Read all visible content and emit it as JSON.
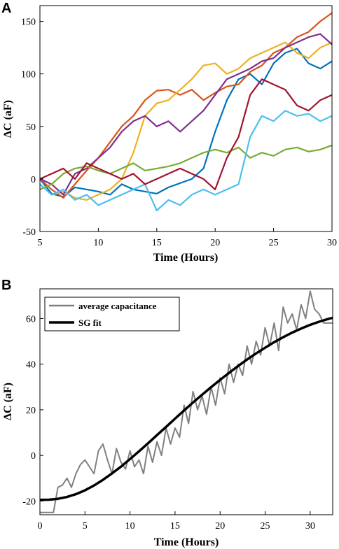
{
  "chart_data": [
    {
      "type": "line",
      "panel_label": "A",
      "xlabel": "Time (Hours)",
      "ylabel": "ΔC (aF)",
      "xlim": [
        5,
        30
      ],
      "ylim": [
        -50,
        165
      ],
      "xticks": [
        5,
        10,
        15,
        20,
        25,
        30
      ],
      "yticks": [
        -50,
        0,
        50,
        100,
        150
      ],
      "grid": false,
      "legend": "none",
      "series": [
        {
          "color": "#0072bd",
          "x": [
            5,
            6,
            7,
            8,
            9,
            10,
            11,
            12,
            13,
            14,
            15,
            16,
            17,
            18,
            19,
            20,
            21,
            22,
            23,
            24,
            25,
            26,
            27,
            28,
            29,
            30
          ],
          "values": [
            0,
            -14,
            -17,
            -8,
            -10,
            -12,
            -15,
            -5,
            -10,
            -12,
            -14,
            -8,
            -4,
            0,
            10,
            45,
            75,
            95,
            100,
            90,
            110,
            120,
            124,
            110,
            105,
            112
          ]
        },
        {
          "color": "#d95319",
          "x": [
            5,
            6,
            7,
            8,
            9,
            10,
            11,
            12,
            13,
            14,
            15,
            16,
            17,
            18,
            19,
            20,
            21,
            22,
            23,
            24,
            25,
            26,
            27,
            28,
            29,
            30
          ],
          "values": [
            0,
            -10,
            -18,
            -5,
            8,
            20,
            35,
            50,
            60,
            75,
            84,
            85,
            80,
            85,
            75,
            82,
            88,
            90,
            102,
            108,
            120,
            125,
            135,
            140,
            150,
            158
          ]
        },
        {
          "color": "#edb120",
          "x": [
            5,
            6,
            7,
            8,
            9,
            10,
            11,
            12,
            13,
            14,
            15,
            16,
            17,
            18,
            19,
            20,
            21,
            22,
            23,
            24,
            25,
            26,
            27,
            28,
            29,
            30
          ],
          "values": [
            -5,
            -15,
            -12,
            -18,
            -20,
            -15,
            -10,
            0,
            25,
            60,
            72,
            75,
            85,
            95,
            108,
            110,
            100,
            105,
            115,
            120,
            125,
            130,
            120,
            115,
            125,
            130
          ]
        },
        {
          "color": "#7e2f8e",
          "x": [
            5,
            6,
            7,
            8,
            9,
            10,
            11,
            12,
            13,
            14,
            15,
            16,
            17,
            18,
            19,
            20,
            21,
            22,
            23,
            24,
            25,
            26,
            27,
            28,
            29,
            30
          ],
          "values": [
            0,
            -5,
            -15,
            5,
            10,
            20,
            30,
            45,
            55,
            60,
            50,
            55,
            45,
            55,
            65,
            80,
            95,
            100,
            105,
            112,
            115,
            125,
            130,
            135,
            138,
            128
          ]
        },
        {
          "color": "#77ac30",
          "x": [
            5,
            6,
            7,
            8,
            9,
            10,
            11,
            12,
            13,
            14,
            15,
            16,
            17,
            18,
            19,
            20,
            21,
            22,
            23,
            24,
            25,
            26,
            27,
            28,
            29,
            30
          ],
          "values": [
            -10,
            -5,
            5,
            10,
            12,
            8,
            5,
            10,
            15,
            8,
            10,
            12,
            15,
            20,
            25,
            28,
            25,
            30,
            20,
            25,
            22,
            28,
            30,
            26,
            28,
            32
          ]
        },
        {
          "color": "#4dbeee",
          "x": [
            5,
            6,
            7,
            8,
            9,
            10,
            11,
            12,
            13,
            14,
            15,
            16,
            17,
            18,
            19,
            20,
            21,
            22,
            23,
            24,
            25,
            26,
            27,
            28,
            29,
            30
          ],
          "values": [
            -5,
            -15,
            -10,
            -20,
            -15,
            -25,
            -20,
            -15,
            -10,
            -5,
            -30,
            -20,
            -25,
            -15,
            -10,
            -15,
            -10,
            -5,
            40,
            60,
            55,
            65,
            60,
            62,
            55,
            60
          ]
        },
        {
          "color": "#a2142f",
          "x": [
            5,
            6,
            7,
            8,
            9,
            10,
            11,
            12,
            13,
            14,
            15,
            16,
            17,
            18,
            19,
            20,
            21,
            22,
            23,
            24,
            25,
            26,
            27,
            28,
            29,
            30
          ],
          "values": [
            0,
            5,
            10,
            0,
            15,
            10,
            5,
            0,
            5,
            -5,
            0,
            5,
            10,
            5,
            0,
            -10,
            20,
            40,
            80,
            95,
            90,
            85,
            70,
            65,
            75,
            80
          ]
        }
      ]
    },
    {
      "type": "line",
      "panel_label": "B",
      "xlabel": "Time (Hours)",
      "ylabel": "ΔC (aF)",
      "xlim": [
        0,
        32.5
      ],
      "ylim": [
        -26,
        73
      ],
      "xticks": [
        0,
        5,
        10,
        15,
        20,
        25,
        30
      ],
      "yticks": [
        -20,
        0,
        20,
        40,
        60
      ],
      "grid": false,
      "legend": "top-left",
      "series": [
        {
          "name": "average capacitance",
          "color": "#808080",
          "x": [
            0,
            0.5,
            1,
            1.5,
            2,
            2.5,
            3,
            3.5,
            4,
            4.5,
            5,
            5.5,
            6,
            6.5,
            7,
            7.5,
            8,
            8.5,
            9,
            9.5,
            10,
            10.5,
            11,
            11.5,
            12,
            12.5,
            13,
            13.5,
            14,
            14.5,
            15,
            15.5,
            16,
            16.5,
            17,
            17.5,
            18,
            18.5,
            19,
            19.5,
            20,
            20.5,
            21,
            21.5,
            22,
            22.5,
            23,
            23.5,
            24,
            24.5,
            25,
            25.5,
            26,
            26.5,
            27,
            27.5,
            28,
            28.5,
            29,
            29.5,
            30,
            30.5,
            31,
            31.5,
            32,
            32.5
          ],
          "values": [
            -25,
            -25,
            -25,
            -25,
            -14,
            -13,
            -10,
            -14,
            -8,
            -4,
            -2,
            -5,
            -8,
            2,
            5,
            -2,
            -8,
            3,
            -3,
            -6,
            2,
            -5,
            -2,
            -8,
            4,
            -3,
            6,
            0,
            12,
            5,
            12,
            8,
            22,
            14,
            28,
            20,
            26,
            18,
            30,
            22,
            34,
            27,
            40,
            32,
            40,
            35,
            48,
            40,
            50,
            44,
            56,
            48,
            58,
            46,
            65,
            58,
            62,
            55,
            66,
            60,
            72,
            64,
            62,
            58,
            58,
            58
          ]
        },
        {
          "name": "SG fit",
          "color": "#000000",
          "x": [
            0,
            1,
            2,
            3,
            4,
            5,
            6,
            7,
            8,
            9,
            10,
            11,
            12,
            13,
            14,
            15,
            16,
            17,
            18,
            19,
            20,
            21,
            22,
            23,
            24,
            25,
            26,
            27,
            28,
            29,
            30,
            31,
            32,
            32.5
          ],
          "values": [
            -19.5,
            -19.4,
            -19.0,
            -18.2,
            -17.0,
            -15.3,
            -13.2,
            -10.7,
            -7.9,
            -4.9,
            -1.6,
            1.8,
            5.3,
            8.9,
            12.5,
            16.1,
            19.7,
            23.2,
            26.6,
            29.9,
            33.1,
            36.2,
            39.2,
            42.0,
            44.7,
            47.2,
            49.6,
            51.8,
            53.8,
            55.6,
            57.2,
            58.6,
            59.8,
            60.3
          ]
        }
      ]
    }
  ]
}
